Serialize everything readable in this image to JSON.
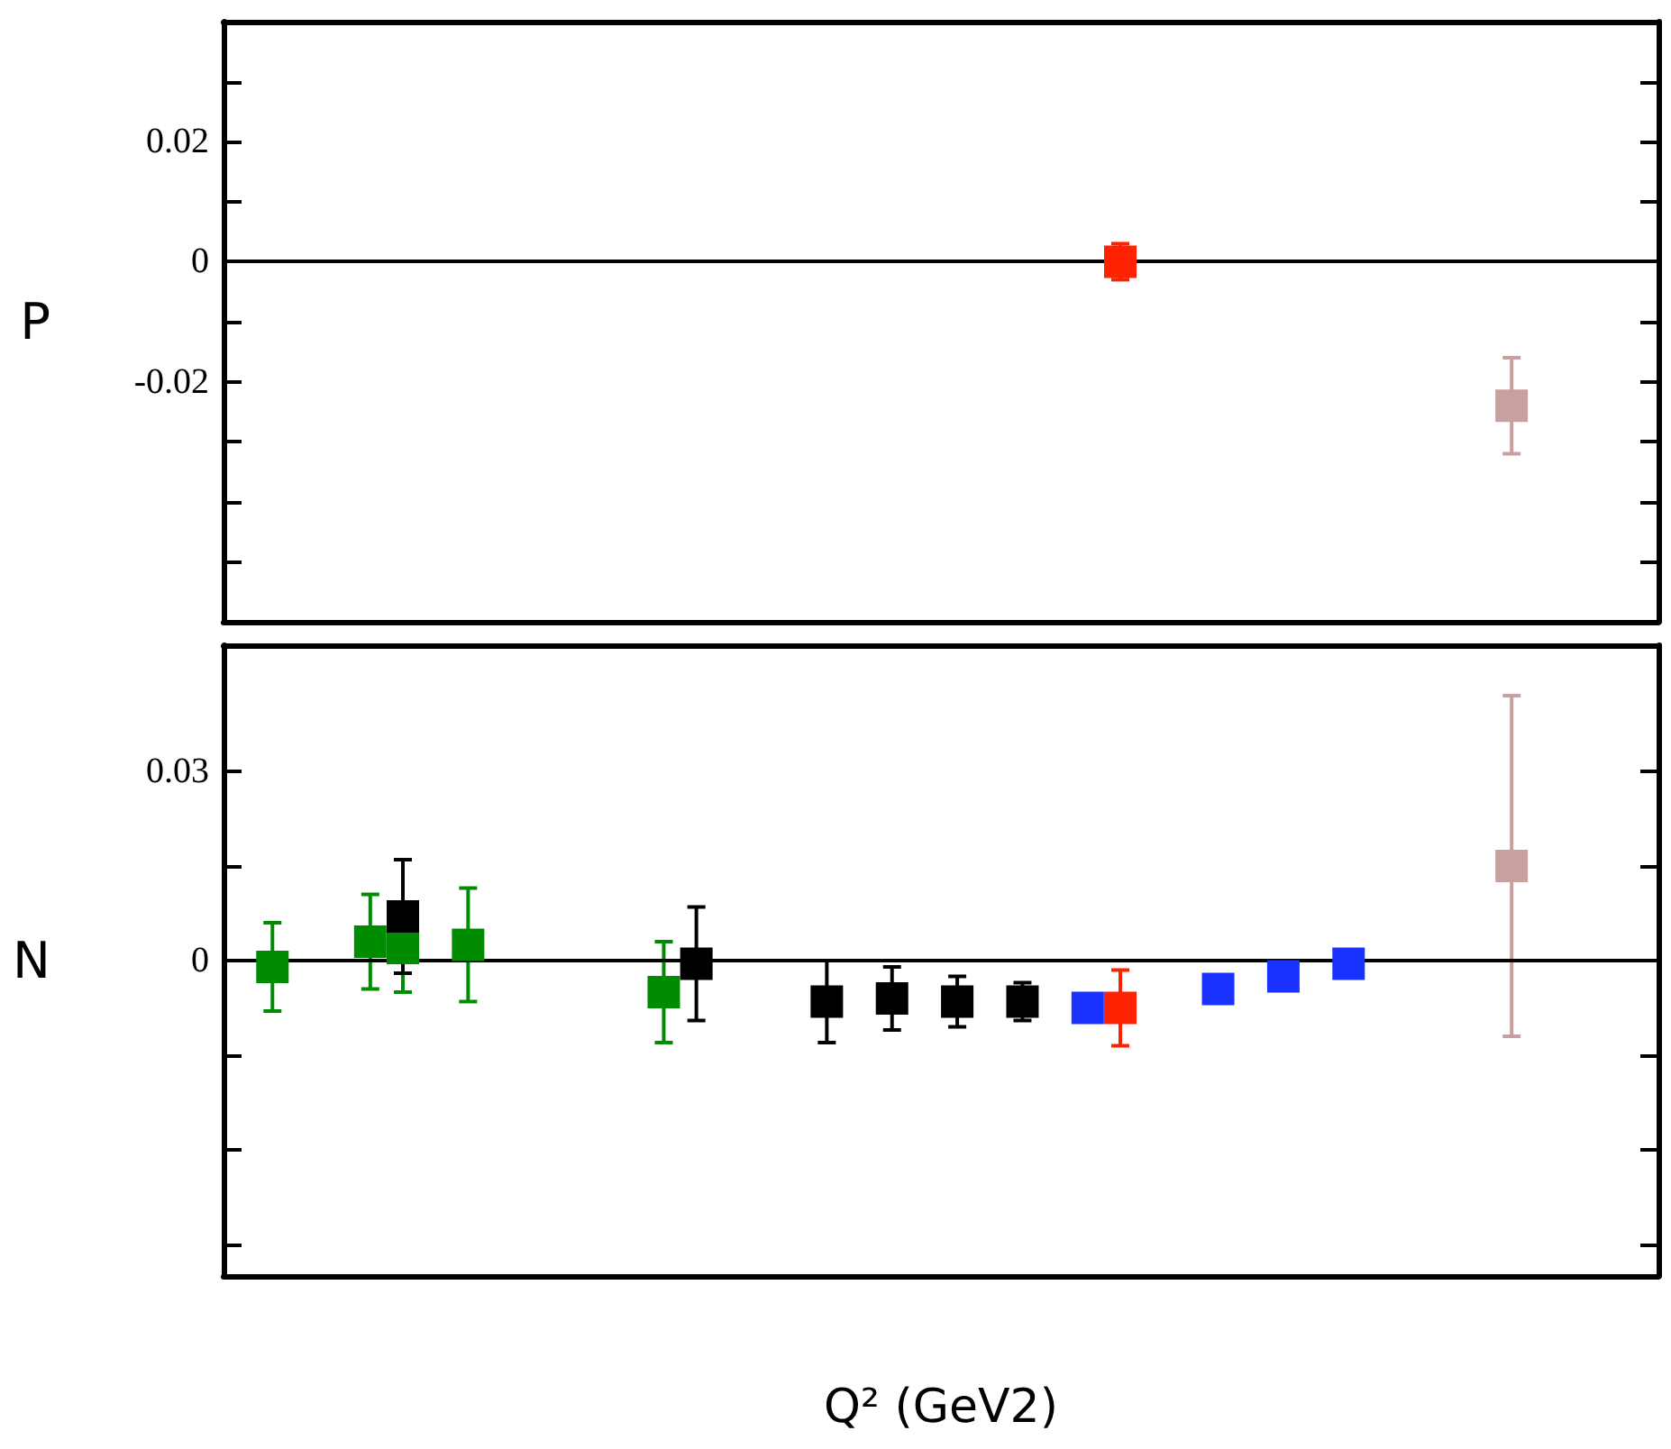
{
  "chart_data": [
    {
      "type": "scatter",
      "ylabel": "P",
      "categories": [
        null,
        null,
        null,
        null,
        null,
        null,
        null,
        null,
        null,
        null,
        null,
        null,
        null,
        null,
        null,
        null,
        null,
        null,
        null,
        null,
        null,
        null,
        null,
        null,
        null,
        null,
        null,
        null,
        null,
        null,
        null,
        null,
        null,
        null,
        null,
        null,
        null,
        null,
        null,
        null,
        null,
        null,
        null,
        null
      ],
      "ylim": [
        -0.06,
        0.04
      ],
      "yticks": [
        {
          "value": 0.03,
          "label": null
        },
        0.02,
        {
          "value": 0.01,
          "label": null
        },
        0,
        {
          "value": -0.01,
          "label": null
        },
        -0.02,
        {
          "value": -0.03,
          "label": null
        },
        {
          "value": -0.04,
          "label": null
        },
        {
          "value": -0.05,
          "label": null
        }
      ],
      "tick_labels": "y",
      "marker": "square",
      "ref_lines": [
        {
          "axis": "y",
          "value": 0,
          "color": "#000000"
        }
      ],
      "series": [
        {
          "color": "#ff2200",
          "values": [
            null,
            null,
            null,
            null,
            null,
            null,
            null,
            null,
            null,
            null,
            null,
            null,
            null,
            null,
            null,
            null,
            null,
            null,
            null,
            null,
            null,
            null,
            null,
            null,
            null,
            null,
            null,
            0.0,
            null,
            null,
            null,
            null,
            null,
            null,
            null,
            null,
            null,
            null,
            null,
            null,
            null,
            null,
            null,
            null
          ],
          "errors": [
            null,
            null,
            null,
            null,
            null,
            null,
            null,
            null,
            null,
            null,
            null,
            null,
            null,
            null,
            null,
            null,
            null,
            null,
            null,
            null,
            null,
            null,
            null,
            null,
            null,
            null,
            null,
            0.003,
            null,
            null,
            null,
            null,
            null,
            null,
            null,
            null,
            null,
            null,
            null,
            null,
            null,
            null,
            null,
            null
          ]
        },
        {
          "color": "#c8a0a0",
          "values": [
            null,
            null,
            null,
            null,
            null,
            null,
            null,
            null,
            null,
            null,
            null,
            null,
            null,
            null,
            null,
            null,
            null,
            null,
            null,
            null,
            null,
            null,
            null,
            null,
            null,
            null,
            null,
            null,
            null,
            null,
            null,
            null,
            null,
            null,
            null,
            null,
            null,
            null,
            null,
            -0.024,
            null,
            null,
            null,
            null
          ],
          "errors": [
            null,
            null,
            null,
            null,
            null,
            null,
            null,
            null,
            null,
            null,
            null,
            null,
            null,
            null,
            null,
            null,
            null,
            null,
            null,
            null,
            null,
            null,
            null,
            null,
            null,
            null,
            null,
            null,
            null,
            null,
            null,
            null,
            null,
            null,
            null,
            null,
            null,
            null,
            null,
            0.008,
            null,
            null,
            null,
            null
          ]
        }
      ]
    },
    {
      "type": "scatter",
      "ylabel": "N",
      "xlabel": "Q² (GeV2)",
      "categories": [
        null,
        null,
        null,
        null,
        null,
        null,
        null,
        null,
        null,
        null,
        null,
        null,
        null,
        null,
        null,
        null,
        null,
        null,
        null,
        null,
        null,
        null,
        null,
        null,
        null,
        null,
        null,
        null,
        null,
        null,
        null,
        null,
        null,
        null,
        null,
        null,
        null,
        null,
        null,
        null,
        null,
        null,
        null,
        null
      ],
      "ylim": [
        -0.05,
        0.05
      ],
      "yticks": [
        0.03,
        {
          "value": 0.015,
          "label": null
        },
        0,
        {
          "value": -0.015,
          "label": null
        },
        {
          "value": -0.03,
          "label": null
        },
        {
          "value": -0.045,
          "label": null
        }
      ],
      "tick_labels": "y",
      "marker": "square",
      "ref_lines": [
        {
          "axis": "y",
          "value": 0,
          "color": "#000000"
        }
      ],
      "series": [
        {
          "color": "#008c00",
          "values": [
            null,
            -0.001,
            null,
            null,
            0.003,
            0.002,
            null,
            0.0025,
            null,
            null,
            null,
            null,
            null,
            -0.005,
            null,
            null,
            null,
            null,
            null,
            null,
            null,
            null,
            null,
            null,
            null,
            null,
            null,
            null,
            null,
            null,
            null,
            null,
            null,
            null,
            null,
            null,
            null,
            null,
            null,
            null,
            null,
            null,
            null,
            null
          ],
          "errors": [
            null,
            0.007,
            null,
            null,
            0.0075,
            0.007,
            null,
            0.009,
            null,
            null,
            null,
            null,
            null,
            0.008,
            null,
            null,
            null,
            null,
            null,
            null,
            null,
            null,
            null,
            null,
            null,
            null,
            null,
            null,
            null,
            null,
            null,
            null,
            null,
            null,
            null,
            null,
            null,
            null,
            null,
            null,
            null,
            null,
            null,
            null
          ]
        },
        {
          "color": "#000000",
          "values": [
            null,
            null,
            null,
            null,
            null,
            0.007,
            null,
            null,
            null,
            null,
            null,
            null,
            null,
            null,
            -0.0005,
            null,
            null,
            null,
            -0.0065,
            null,
            -0.006,
            null,
            -0.0065,
            null,
            -0.0065,
            null,
            null,
            null,
            null,
            null,
            null,
            null,
            null,
            null,
            null,
            null,
            null,
            null,
            null,
            null,
            null,
            null,
            null,
            null
          ],
          "errors": [
            null,
            null,
            null,
            null,
            null,
            0.009,
            null,
            null,
            null,
            null,
            null,
            null,
            null,
            null,
            0.009,
            null,
            null,
            null,
            0.0065,
            null,
            0.005,
            null,
            0.004,
            null,
            0.003,
            null,
            null,
            null,
            null,
            null,
            null,
            null,
            null,
            null,
            null,
            null,
            null,
            null,
            null,
            null,
            null,
            null,
            null,
            null
          ]
        },
        {
          "color": "#1a32ff",
          "values": [
            null,
            null,
            null,
            null,
            null,
            null,
            null,
            null,
            null,
            null,
            null,
            null,
            null,
            null,
            null,
            null,
            null,
            null,
            null,
            null,
            null,
            null,
            null,
            null,
            null,
            null,
            -0.0075,
            null,
            null,
            null,
            -0.0045,
            null,
            -0.0025,
            null,
            -0.0005,
            null,
            null,
            null,
            null,
            null,
            null,
            null,
            null,
            null
          ]
        },
        {
          "color": "#ff2200",
          "values": [
            null,
            null,
            null,
            null,
            null,
            null,
            null,
            null,
            null,
            null,
            null,
            null,
            null,
            null,
            null,
            null,
            null,
            null,
            null,
            null,
            null,
            null,
            null,
            null,
            null,
            null,
            null,
            -0.0075,
            null,
            null,
            null,
            null,
            null,
            null,
            null,
            null,
            null,
            null,
            null,
            null,
            null,
            null,
            null,
            null
          ],
          "errors": [
            null,
            null,
            null,
            null,
            null,
            null,
            null,
            null,
            null,
            null,
            null,
            null,
            null,
            null,
            null,
            null,
            null,
            null,
            null,
            null,
            null,
            null,
            null,
            null,
            null,
            null,
            null,
            0.006,
            null,
            null,
            null,
            null,
            null,
            null,
            null,
            null,
            null,
            null,
            null,
            null,
            null,
            null,
            null,
            null
          ]
        },
        {
          "color": "#c8a0a0",
          "values": [
            null,
            null,
            null,
            null,
            null,
            null,
            null,
            null,
            null,
            null,
            null,
            null,
            null,
            null,
            null,
            null,
            null,
            null,
            null,
            null,
            null,
            null,
            null,
            null,
            null,
            null,
            null,
            null,
            null,
            null,
            null,
            null,
            null,
            null,
            null,
            null,
            null,
            null,
            null,
            0.015,
            null,
            null,
            null,
            null
          ],
          "errors": [
            null,
            null,
            null,
            null,
            null,
            null,
            null,
            null,
            null,
            null,
            null,
            null,
            null,
            null,
            null,
            null,
            null,
            null,
            null,
            null,
            null,
            null,
            null,
            null,
            null,
            null,
            null,
            null,
            null,
            null,
            null,
            null,
            null,
            null,
            null,
            null,
            null,
            null,
            null,
            0.027,
            null,
            null,
            null,
            null
          ]
        }
      ]
    }
  ]
}
